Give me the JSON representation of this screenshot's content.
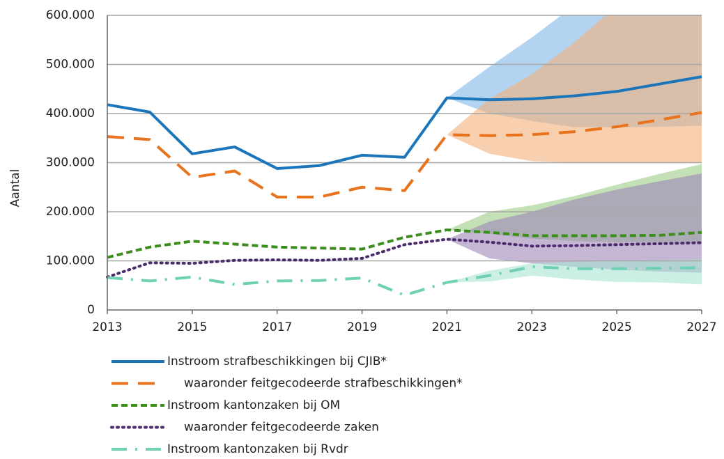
{
  "chart_data": {
    "type": "line",
    "ylabel": "Aantal",
    "x": [
      2013,
      2014,
      2015,
      2016,
      2017,
      2018,
      2019,
      2020,
      2021,
      2022,
      2023,
      2024,
      2025,
      2026,
      2027
    ],
    "xlim": [
      2013,
      2027
    ],
    "xticks": [
      2013,
      2015,
      2017,
      2019,
      2021,
      2023,
      2025,
      2027
    ],
    "ylim": [
      0,
      600000
    ],
    "yticks": [
      0,
      {
        "value": 100000,
        "label": "100.000"
      },
      {
        "value": 200000,
        "label": "200.000"
      },
      {
        "value": 300000,
        "label": "300.000"
      },
      {
        "value": 400000,
        "label": "400.000"
      },
      {
        "value": 500000,
        "label": "500.000"
      },
      {
        "value": 600000,
        "label": "600.000"
      }
    ],
    "grid": true,
    "legend": "bottom",
    "band_x": [
      2021,
      2022,
      2023,
      2024,
      2025,
      2026,
      2027
    ],
    "series": [
      {
        "name": "Instroom strafbeschikkingen bij CJIB*",
        "color": "#1b75bb",
        "values": [
          418000,
          403000,
          318000,
          332000,
          288000,
          294000,
          315000,
          311000,
          432000,
          428000,
          430000,
          436000,
          445000,
          460000,
          475000
        ],
        "band": {
          "color": "#7fb8e6",
          "lower": [
            432000,
            400000,
            385000,
            372000,
            372000,
            373000,
            375000
          ],
          "upper": [
            432000,
            495000,
            555000,
            620000,
            690000,
            760000,
            830000
          ]
        }
      },
      {
        "name": "waaronder feitgecodeerde strafbeschikkingen*",
        "color": "#e8731c",
        "values": [
          353000,
          347000,
          270000,
          283000,
          230000,
          230000,
          250000,
          243000,
          357000,
          355000,
          357000,
          363000,
          373000,
          387000,
          402000
        ],
        "band": {
          "color": "#f3b07c",
          "lower": [
            357000,
            318000,
            303000,
            300000,
            300000,
            300000,
            300000
          ],
          "upper": [
            357000,
            430000,
            480000,
            545000,
            620000,
            700000,
            780000
          ]
        }
      },
      {
        "name": "Instroom kantonzaken bij OM",
        "color": "#3d8c1e",
        "values": [
          107000,
          128000,
          140000,
          134000,
          128000,
          126000,
          124000,
          148000,
          163000,
          158000,
          151000,
          151000,
          151000,
          152000,
          158000
        ],
        "band": {
          "color": "#9ccb86",
          "lower": [
            163000,
            155000,
            145000,
            140000,
            138000,
            137000,
            136000
          ],
          "upper": [
            163000,
            200000,
            213000,
            232000,
            255000,
            277000,
            297000
          ]
        }
      },
      {
        "name": "waaronder feitgecodeerde zaken",
        "color": "#4b2a6e",
        "values": [
          67000,
          96000,
          95000,
          101000,
          102000,
          101000,
          105000,
          133000,
          144000,
          138000,
          130000,
          131000,
          133000,
          135000,
          137000
        ],
        "band": {
          "color": "#9e86b8",
          "lower": [
            144000,
            105000,
            95000,
            88000,
            82000,
            78000,
            76000
          ],
          "upper": [
            144000,
            180000,
            200000,
            225000,
            245000,
            262000,
            278000
          ]
        }
      },
      {
        "name": "Instroom kantonzaken bij Rvdr",
        "color": "#6fd0b4",
        "values": [
          66000,
          59000,
          67000,
          52000,
          59000,
          60000,
          65000,
          30000,
          56000,
          70000,
          88000,
          84000,
          84000,
          85000,
          86000
        ],
        "band": {
          "color": "#a8e4d2",
          "lower": [
            56000,
            58000,
            70000,
            62000,
            57000,
            56000,
            52000
          ],
          "upper": [
            56000,
            80000,
            95000,
            98000,
            100000,
            102000,
            103000
          ]
        }
      }
    ]
  }
}
